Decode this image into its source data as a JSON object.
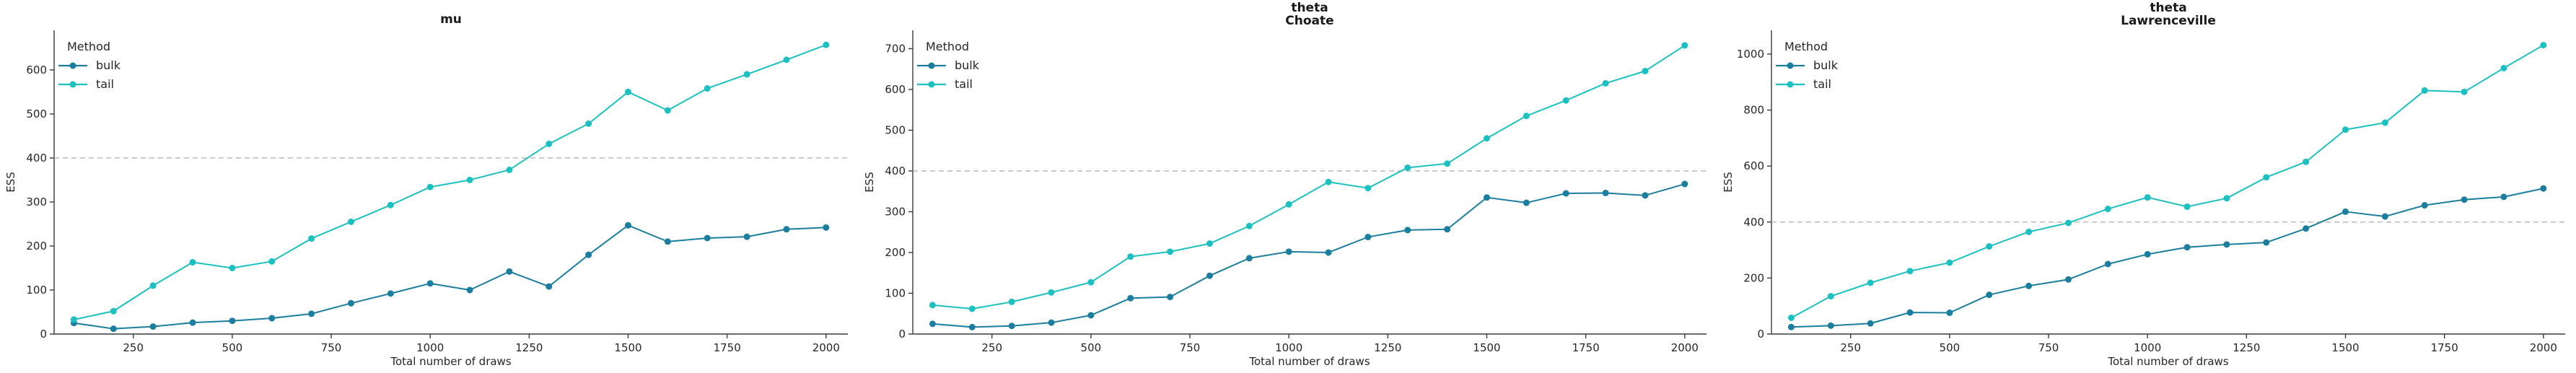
{
  "figure": {
    "background": "#ffffff",
    "text_color": "#262626",
    "spine_color": "#3a3a3a",
    "reference_line_color": "#b3b3b3",
    "reference_value": 400,
    "xlabel": "Total number of draws",
    "ylabel": "ESS",
    "legend_title": "Method",
    "series_colors": {
      "bulk": "#1b7e9e",
      "tail": "#1dc0c1"
    }
  },
  "chart_data": [
    {
      "type": "line",
      "id": "mu",
      "title_lines": [
        "mu"
      ],
      "xlabel": "Total number of draws",
      "ylabel": "ESS",
      "legend": {
        "title": "Method",
        "entries": [
          "bulk",
          "tail"
        ],
        "position": "upper left"
      },
      "grid": false,
      "hline": 400,
      "xlim": [
        50,
        2055
      ],
      "ylim": [
        0,
        690
      ],
      "xticks": [
        250,
        500,
        750,
        1000,
        1250,
        1500,
        1750,
        2000
      ],
      "yticks": [
        0,
        100,
        200,
        300,
        400,
        500,
        600
      ],
      "x": [
        100,
        200,
        300,
        400,
        500,
        600,
        700,
        800,
        900,
        1000,
        1100,
        1200,
        1300,
        1400,
        1500,
        1600,
        1700,
        1800,
        1900,
        2000
      ],
      "series": [
        {
          "name": "bulk",
          "color": "#1b7e9e",
          "values": [
            25,
            12,
            17,
            26,
            30,
            36,
            46,
            70,
            92,
            115,
            100,
            142,
            108,
            180,
            247,
            210,
            218,
            221,
            238,
            242
          ]
        },
        {
          "name": "tail",
          "color": "#1dc0c1",
          "values": [
            33,
            52,
            110,
            163,
            150,
            165,
            217,
            255,
            293,
            334,
            350,
            373,
            432,
            478,
            550,
            508,
            558,
            590,
            623,
            657
          ]
        }
      ]
    },
    {
      "type": "line",
      "id": "theta-choate",
      "title_lines": [
        "theta",
        "Choate"
      ],
      "xlabel": "Total number of draws",
      "ylabel": "ESS",
      "legend": {
        "title": "Method",
        "entries": [
          "bulk",
          "tail"
        ],
        "position": "upper left"
      },
      "grid": false,
      "hline": 400,
      "xlim": [
        50,
        2055
      ],
      "ylim": [
        0,
        745
      ],
      "xticks": [
        250,
        500,
        750,
        1000,
        1250,
        1500,
        1750,
        2000
      ],
      "yticks": [
        0,
        100,
        200,
        300,
        400,
        500,
        600,
        700
      ],
      "x": [
        100,
        200,
        300,
        400,
        500,
        600,
        700,
        800,
        900,
        1000,
        1100,
        1200,
        1300,
        1400,
        1500,
        1600,
        1700,
        1800,
        1900,
        2000
      ],
      "series": [
        {
          "name": "bulk",
          "color": "#1b7e9e",
          "values": [
            25,
            17,
            20,
            28,
            46,
            88,
            91,
            143,
            186,
            202,
            200,
            238,
            255,
            257,
            335,
            322,
            345,
            346,
            340,
            368
          ]
        },
        {
          "name": "tail",
          "color": "#1dc0c1",
          "values": [
            71,
            62,
            79,
            102,
            127,
            190,
            202,
            222,
            265,
            318,
            373,
            358,
            408,
            418,
            480,
            535,
            573,
            615,
            645,
            708
          ]
        }
      ]
    },
    {
      "type": "line",
      "id": "theta-lawrenceville",
      "title_lines": [
        "theta",
        "Lawrenceville"
      ],
      "xlabel": "Total number of draws",
      "ylabel": "ESS",
      "legend": {
        "title": "Method",
        "entries": [
          "bulk",
          "tail"
        ],
        "position": "upper left"
      },
      "grid": false,
      "hline": 400,
      "xlim": [
        50,
        2055
      ],
      "ylim": [
        0,
        1085
      ],
      "xticks": [
        250,
        500,
        750,
        1000,
        1250,
        1500,
        1750,
        2000
      ],
      "yticks": [
        0,
        200,
        400,
        600,
        800,
        1000
      ],
      "x": [
        100,
        200,
        300,
        400,
        500,
        600,
        700,
        800,
        900,
        1000,
        1100,
        1200,
        1300,
        1400,
        1500,
        1600,
        1700,
        1800,
        1900,
        2000
      ],
      "series": [
        {
          "name": "bulk",
          "color": "#1b7e9e",
          "values": [
            25,
            30,
            38,
            77,
            76,
            140,
            172,
            195,
            250,
            285,
            310,
            320,
            327,
            377,
            437,
            420,
            460,
            480,
            490,
            520
          ]
        },
        {
          "name": "tail",
          "color": "#1dc0c1",
          "values": [
            58,
            135,
            183,
            225,
            255,
            313,
            365,
            397,
            447,
            488,
            455,
            485,
            560,
            615,
            730,
            755,
            870,
            865,
            950,
            1032
          ]
        }
      ]
    }
  ]
}
